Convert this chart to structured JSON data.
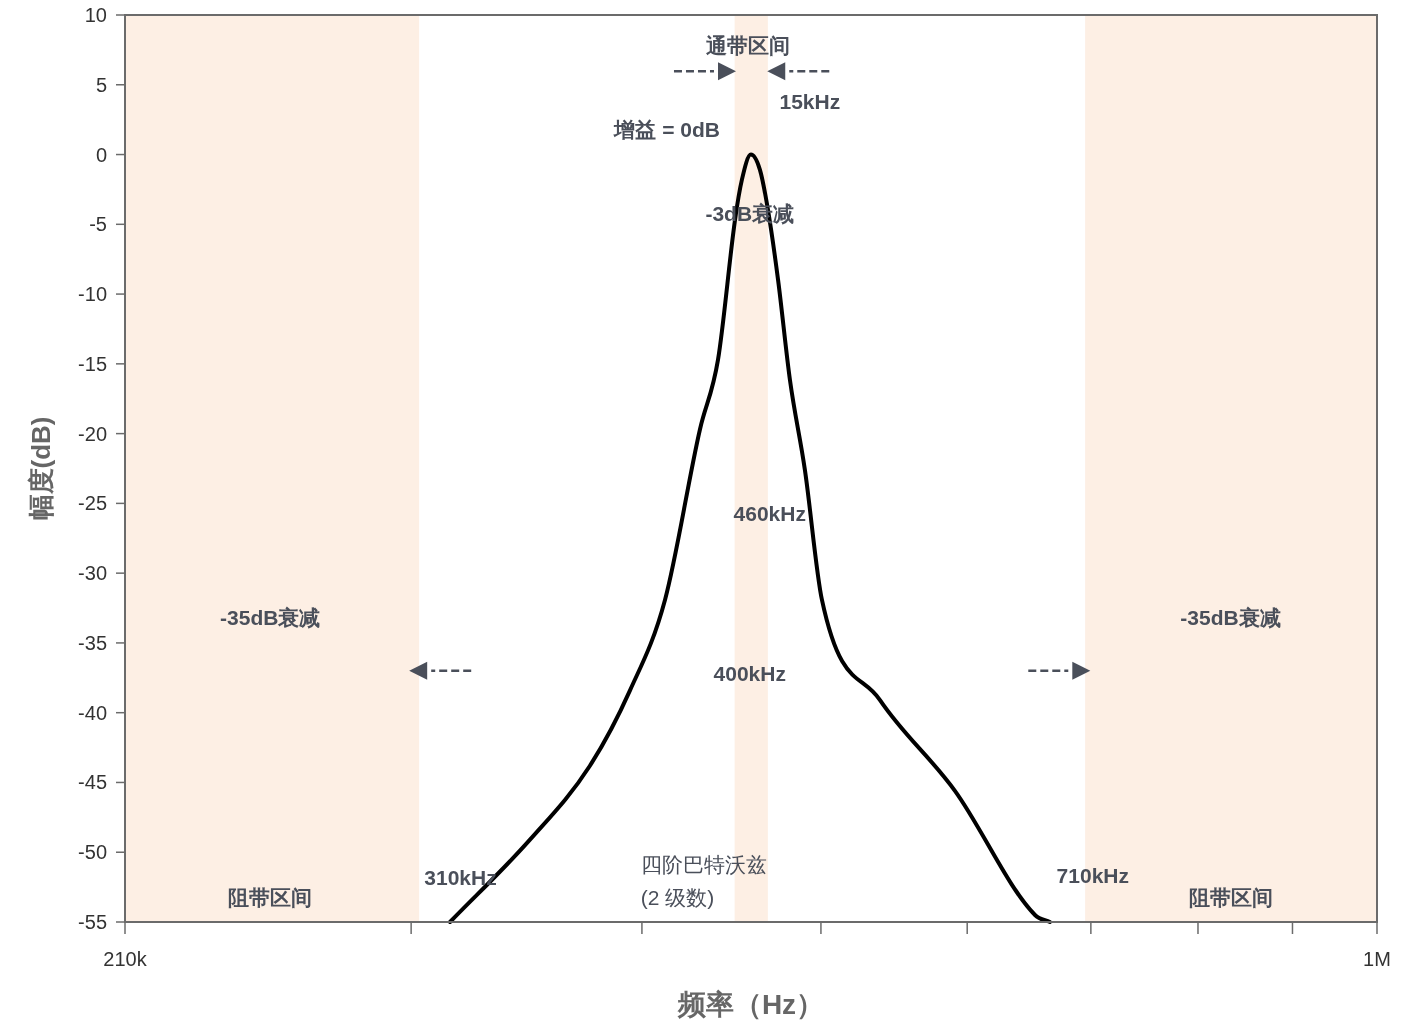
{
  "chart_data": {
    "type": "line",
    "xlabel": "频率（Hz）",
    "ylabel": "幅度(dB)",
    "log": "x",
    "xlim": [
      210000,
      1000000
    ],
    "xticks": [
      {
        "value": 210000,
        "label": "210k"
      },
      {
        "value": 300000,
        "label": null
      },
      {
        "value": 400000,
        "label": null
      },
      {
        "value": 500000,
        "label": null
      },
      {
        "value": 600000,
        "label": null
      },
      {
        "value": 700000,
        "label": null
      },
      {
        "value": 800000,
        "label": null
      },
      {
        "value": 900000,
        "label": null
      },
      {
        "value": 1000000,
        "label": "1M"
      }
    ],
    "ylim": [
      -55,
      10
    ],
    "yticks": [
      -55,
      -50,
      -45,
      -40,
      -35,
      -30,
      -25,
      -20,
      -15,
      -10,
      -5,
      0,
      5,
      10
    ],
    "grid": false,
    "bands": [
      {
        "axis": "x",
        "from": 210000,
        "to": 303000,
        "color": "#fdefe4"
      },
      {
        "axis": "x",
        "from": 449000,
        "to": 468000,
        "color": "#fdefe4"
      },
      {
        "axis": "x",
        "from": 695000,
        "to": 1000000,
        "color": "#fdefe4"
      }
    ],
    "series": [
      {
        "color": "#000000",
        "x": [
          314900,
          347900,
          374900,
          394100,
          411700,
          430000,
          439800,
          449200,
          453100,
          458200,
          463400,
          468100,
          474000,
          481100,
          490100,
          500600,
          538200,
          590900,
          652900,
          665200
        ],
        "values": [
          -55,
          -49.1,
          -43.8,
          -38.4,
          -31.9,
          -19.7,
          -14.7,
          -4.7,
          -1.8,
          0,
          -1.1,
          -4.0,
          -9.0,
          -16.2,
          -22.6,
          -31.9,
          -39.1,
          -45.6,
          -54.5,
          -55
        ]
      }
    ],
    "annotations": [
      "通带区间",
      "15kHz",
      "增益 = 0dB",
      "-3dB衰减",
      "460kHz",
      "400kHz",
      "-35dB衰减",
      "-35dB衰减",
      "310kHz",
      "710kHz",
      "四阶巴特沃兹\n(2 级数)",
      "阻带区间",
      "阻带区间"
    ]
  }
}
